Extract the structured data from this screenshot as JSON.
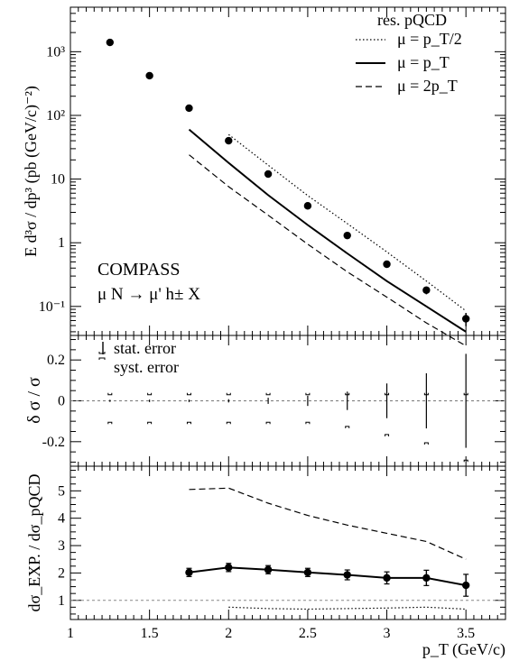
{
  "chart_data": [
    {
      "type": "scatter",
      "xlabel": "p_T (GeV/c)",
      "ylabel": "E d³σ / dp³  (pb (GeV/c)⁻²)",
      "scale_y": "log",
      "xlim": [
        1,
        3.75
      ],
      "ylim": [
        0.035,
        5000
      ],
      "legend_position": "top-right",
      "legend_title": "res. pQCD",
      "annotation": [
        "COMPASS",
        "μ N → μ' h± X"
      ],
      "x_ticks": [
        "1",
        "1.5",
        "2",
        "2.5",
        "3",
        "3.5"
      ],
      "y_ticks": [
        {
          "value": 0.1,
          "label": "10⁻¹"
        },
        {
          "value": 1,
          "label": "1"
        },
        {
          "value": 10,
          "label": "10"
        },
        {
          "value": 100,
          "label": "10²"
        },
        {
          "value": 1000,
          "label": "10³"
        }
      ],
      "data": {
        "x": [
          1.25,
          1.5,
          1.75,
          2.0,
          2.25,
          2.5,
          2.75,
          3.0,
          3.25,
          3.5
        ],
        "y": [
          1400,
          420,
          130,
          40,
          12,
          3.8,
          1.3,
          0.46,
          0.18,
          0.064
        ],
        "y_err_low": [
          1300,
          400,
          124,
          38,
          11.4,
          3.6,
          1.23,
          0.42,
          0.155,
          0.049
        ],
        "y_err_high": [
          1500,
          440,
          136,
          42,
          12.6,
          4.0,
          1.37,
          0.5,
          0.205,
          0.079
        ]
      },
      "series": [
        {
          "name": "μ = p_T/2",
          "style": "dotted",
          "x": [
            2.0,
            2.25,
            2.5,
            2.75,
            3.0,
            3.25,
            3.5
          ],
          "y": [
            50,
            16.5,
            5.5,
            2.0,
            0.72,
            0.25,
            0.085
          ]
        },
        {
          "name": "μ = p_T",
          "style": "solid",
          "x": [
            1.75,
            2.0,
            2.25,
            2.5,
            2.75,
            3.0,
            3.25,
            3.5
          ],
          "y": [
            60,
            18,
            5.6,
            1.9,
            0.68,
            0.25,
            0.1,
            0.04
          ]
        },
        {
          "name": "μ = 2p_T",
          "style": "dashed",
          "x": [
            1.75,
            2.0,
            2.25,
            2.5,
            2.75,
            3.0,
            3.25,
            3.5
          ],
          "y": [
            24,
            7.6,
            2.7,
            0.95,
            0.35,
            0.14,
            0.055,
            0.024
          ]
        }
      ]
    },
    {
      "type": "scatter",
      "ylabel": "δ σ / σ",
      "xlim": [
        1,
        3.75
      ],
      "ylim": [
        -0.32,
        0.32
      ],
      "y_ticks": [
        "-0.2",
        "0",
        "0.2"
      ],
      "reference_line": 0,
      "legend": [
        "stat. error",
        "syst. error"
      ],
      "legend_position": "top-left",
      "x": [
        1.25,
        1.5,
        1.75,
        2.0,
        2.25,
        2.5,
        2.75,
        3.0,
        3.25,
        3.5
      ],
      "stat_error": [
        0.005,
        0.006,
        0.006,
        0.008,
        0.015,
        0.025,
        0.045,
        0.085,
        0.135,
        0.23
      ],
      "syst_error_high": [
        0.03,
        0.03,
        0.03,
        0.03,
        0.03,
        0.03,
        0.03,
        0.03,
        0.03,
        0.03
      ],
      "syst_error_low": [
        -0.105,
        -0.105,
        -0.105,
        -0.105,
        -0.105,
        -0.105,
        -0.125,
        -0.165,
        -0.205,
        -0.29
      ]
    },
    {
      "type": "line",
      "ylabel": "dσ_EXP. / dσ_pQCD",
      "xlabel": "p_T (GeV/c)",
      "xlim": [
        1,
        3.75
      ],
      "ylim": [
        0.3,
        5.9
      ],
      "x_ticks": [
        "1",
        "1.5",
        "2",
        "2.5",
        "3",
        "3.5"
      ],
      "y_ticks": [
        "1",
        "2",
        "3",
        "4",
        "5"
      ],
      "reference_line": 1,
      "data": {
        "x": [
          1.75,
          2.0,
          2.25,
          2.5,
          2.75,
          3.0,
          3.25,
          3.5
        ],
        "y": [
          2.02,
          2.2,
          2.12,
          2.02,
          1.93,
          1.82,
          1.82,
          1.55
        ],
        "y_err": [
          0.15,
          0.15,
          0.15,
          0.15,
          0.18,
          0.22,
          0.28,
          0.4
        ]
      },
      "series": [
        {
          "name": "μ = 2p_T",
          "style": "dashed",
          "x": [
            1.75,
            2.0,
            2.25,
            2.5,
            2.75,
            3.0,
            3.25,
            3.5
          ],
          "y": [
            5.05,
            5.1,
            4.55,
            4.1,
            3.75,
            3.45,
            3.15,
            2.5
          ]
        },
        {
          "name": "μ = p_T/2",
          "style": "dotted",
          "x": [
            2.0,
            2.25,
            2.5,
            2.75,
            3.0,
            3.25,
            3.5
          ],
          "y": [
            0.75,
            0.7,
            0.68,
            0.7,
            0.72,
            0.75,
            0.68
          ]
        }
      ]
    }
  ]
}
